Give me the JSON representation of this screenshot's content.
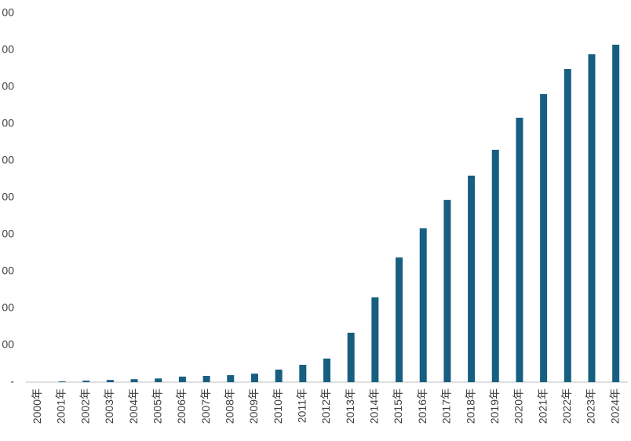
{
  "chart_data": {
    "type": "bar",
    "categories": [
      "2000年",
      "2001年",
      "2002年",
      "2003年",
      "2004年",
      "2005年",
      "2006年",
      "2007年",
      "2008年",
      "2009年",
      "2010年",
      "2011年",
      "2012年",
      "2013年",
      "2014年",
      "2015年",
      "2016年",
      "2017年",
      "2018年",
      "2019年",
      "2020年",
      "2021年",
      "2022年",
      "2023年",
      "2024年"
    ],
    "values": [
      0,
      2,
      4,
      6,
      8,
      10,
      15,
      17,
      19,
      23,
      34,
      47,
      64,
      134,
      230,
      338,
      417,
      494,
      560,
      630,
      717,
      781,
      849,
      889,
      915
    ],
    "color": "#175f80",
    "ylim": [
      0,
      1000
    ],
    "yticks": [
      {
        "value": 0,
        "label": "-"
      },
      {
        "value": 100,
        "label": "00"
      },
      {
        "value": 200,
        "label": "00"
      },
      {
        "value": 300,
        "label": "00"
      },
      {
        "value": 400,
        "label": "00"
      },
      {
        "value": 500,
        "label": "00"
      },
      {
        "value": 600,
        "label": "00"
      },
      {
        "value": 700,
        "label": "00"
      },
      {
        "value": 800,
        "label": "00"
      },
      {
        "value": 900,
        "label": "00"
      },
      {
        "value": 1000,
        "label": "00"
      }
    ]
  }
}
